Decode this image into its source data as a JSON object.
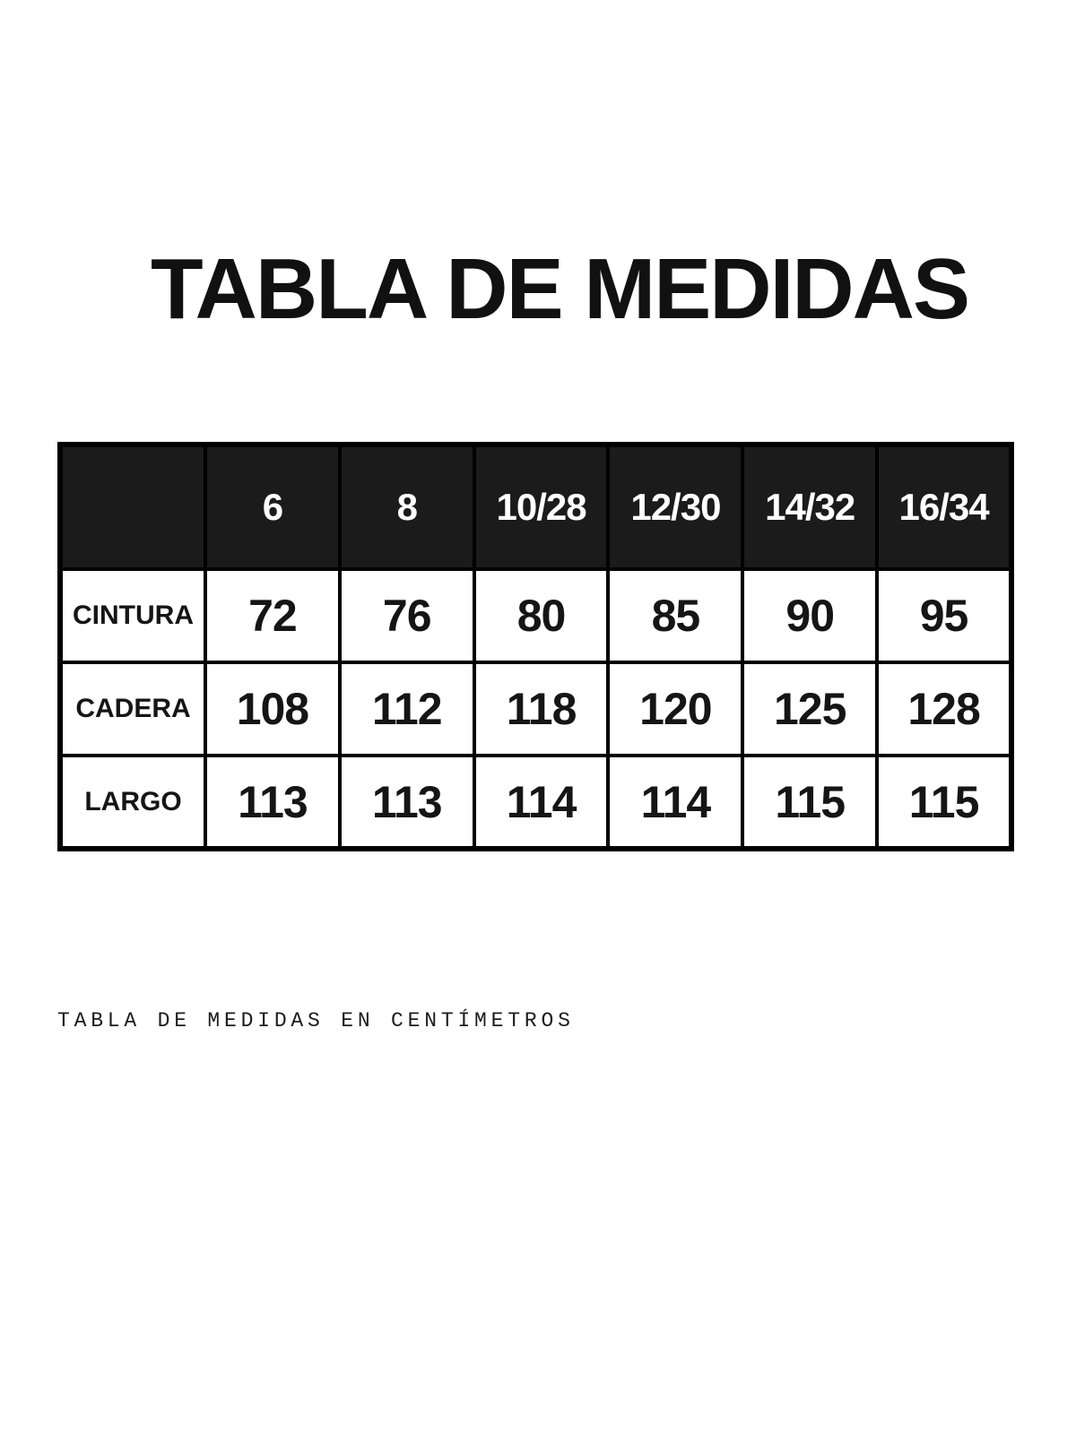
{
  "title": "TABLA DE MEDIDAS",
  "table": {
    "corner_label": "",
    "size_headers": [
      "6",
      "8",
      "10/28",
      "12/30",
      "14/32",
      "16/34"
    ],
    "rows": [
      {
        "label": "CINTURA",
        "values": [
          "72",
          "76",
          "80",
          "85",
          "90",
          "95"
        ]
      },
      {
        "label": "CADERA",
        "values": [
          "108",
          "112",
          "118",
          "120",
          "125",
          "128"
        ]
      },
      {
        "label": "LARGO",
        "values": [
          "113",
          "113",
          "114",
          "114",
          "115",
          "115"
        ]
      }
    ],
    "header_bg": "#1b1b1b",
    "header_text_color": "#ffffff",
    "border_color": "#000000",
    "body_bg": "#ffffff"
  },
  "footer_note": "TABLA DE MEDIDAS EN CENTÍMETROS",
  "chart_data": {
    "type": "table",
    "title": "TABLA DE MEDIDAS",
    "columns": [
      "",
      "6",
      "8",
      "10/28",
      "12/30",
      "14/32",
      "16/34"
    ],
    "rows": [
      [
        "CINTURA",
        72,
        76,
        80,
        85,
        90,
        95
      ],
      [
        "CADERA",
        108,
        112,
        118,
        120,
        125,
        128
      ],
      [
        "LARGO",
        113,
        113,
        114,
        114,
        115,
        115
      ]
    ],
    "units_note": "TABLA DE MEDIDAS EN CENTÍMETROS",
    "layout_hints": {
      "header_row_fill": "#1b1b1b",
      "header_row_text": "#ffffff",
      "grid": true,
      "grid_color": "#000000"
    }
  }
}
